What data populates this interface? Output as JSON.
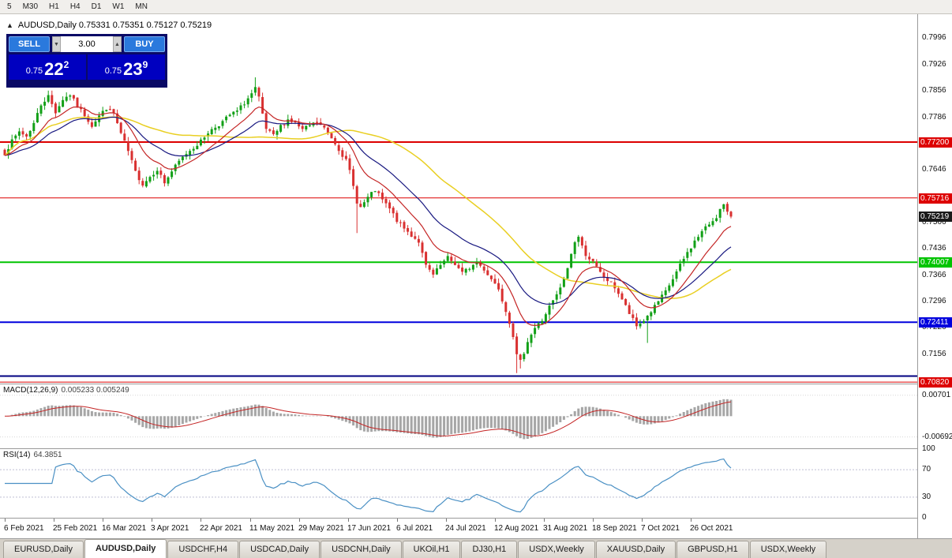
{
  "toolbar": {
    "timeframes": [
      "5",
      "M30",
      "H1",
      "H4",
      "D1",
      "W1",
      "MN"
    ]
  },
  "chart_title": {
    "collapse_icon": "▲",
    "text": "AUDUSD,Daily 0.75331 0.75351 0.75127 0.75219"
  },
  "trade_panel": {
    "sell_label": "SELL",
    "buy_label": "BUY",
    "volume": "3.00",
    "stepper_down": "▼",
    "stepper_up": "▲",
    "sell_price": {
      "prefix": "0.75",
      "big": "22",
      "sup": "2"
    },
    "buy_price": {
      "prefix": "0.75",
      "big": "23",
      "sup": "9"
    }
  },
  "indicator_labels": {
    "macd": "MACD(12,26,9)",
    "macd_values": "0.005233 0.005249",
    "rsi": "RSI(14)",
    "rsi_value": "64.3851"
  },
  "tabs": {
    "active_index": 1,
    "items": [
      "EURUSD,Daily",
      "AUDUSD,Daily",
      "USDCHF,H4",
      "USDCAD,Daily",
      "USDCNH,Daily",
      "UKOil,H1",
      "DJ30,H1",
      "USDX,Weekly",
      "XAUUSD,Daily",
      "GBPUSD,H1",
      "USDX,Weekly"
    ]
  },
  "chart_data": {
    "type": "candlestick",
    "symbol": "AUDUSD",
    "timeframe": "Daily",
    "title": "AUDUSD,Daily",
    "ohlc_current": {
      "open": 0.75331,
      "high": 0.75351,
      "low": 0.75127,
      "close": 0.75219
    },
    "ylim": [
      0.7078,
      0.8062
    ],
    "price_axis_ticks": [
      0.7996,
      0.7926,
      0.7856,
      0.7786,
      0.7646,
      0.7506,
      0.7436,
      0.7366,
      0.7296,
      0.7226,
      0.7156
    ],
    "x_axis_dates": [
      {
        "label": "6 Feb 2021",
        "bar": 0
      },
      {
        "label": "25 Feb 2021",
        "bar": 13.5
      },
      {
        "label": "16 Mar 2021",
        "bar": 27
      },
      {
        "label": "3 Apr 2021",
        "bar": 40.5
      },
      {
        "label": "22 Apr 2021",
        "bar": 54
      },
      {
        "label": "11 May 2021",
        "bar": 67.5
      },
      {
        "label": "29 May 2021",
        "bar": 81
      },
      {
        "label": "17 Jun 2021",
        "bar": 94.5
      },
      {
        "label": "6 Jul 2021",
        "bar": 108
      },
      {
        "label": "24 Jul 2021",
        "bar": 121.5
      },
      {
        "label": "12 Aug 2021",
        "bar": 135
      },
      {
        "label": "31 Aug 2021",
        "bar": 148.5
      },
      {
        "label": "18 Sep 2021",
        "bar": 162
      },
      {
        "label": "7 Oct 2021",
        "bar": 175.5
      },
      {
        "label": "26 Oct 2021",
        "bar": 189
      }
    ],
    "bars": 201,
    "bar_start_x": 6,
    "bar_step": 4.6,
    "seed": 7,
    "noise": 0.0011,
    "wick": 0.0013,
    "last_close": 0.75219,
    "close_anchors": [
      [
        0,
        0.769
      ],
      [
        2,
        0.7722
      ],
      [
        4,
        0.7748
      ],
      [
        6,
        0.7735
      ],
      [
        8,
        0.777
      ],
      [
        10,
        0.782
      ],
      [
        12,
        0.7842
      ],
      [
        14,
        0.78
      ],
      [
        16,
        0.7834
      ],
      [
        18,
        0.7846
      ],
      [
        20,
        0.7815
      ],
      [
        22,
        0.7792
      ],
      [
        24,
        0.7764
      ],
      [
        26,
        0.779
      ],
      [
        28,
        0.781
      ],
      [
        30,
        0.7796
      ],
      [
        32,
        0.7742
      ],
      [
        34,
        0.7695
      ],
      [
        36,
        0.764
      ],
      [
        38,
        0.7608
      ],
      [
        40,
        0.7628
      ],
      [
        42,
        0.7648
      ],
      [
        44,
        0.7612
      ],
      [
        46,
        0.7642
      ],
      [
        48,
        0.7668
      ],
      [
        50,
        0.769
      ],
      [
        52,
        0.7706
      ],
      [
        54,
        0.7722
      ],
      [
        56,
        0.7746
      ],
      [
        58,
        0.776
      ],
      [
        60,
        0.7774
      ],
      [
        62,
        0.7792
      ],
      [
        64,
        0.7802
      ],
      [
        66,
        0.7824
      ],
      [
        68,
        0.7848
      ],
      [
        69,
        0.7862
      ],
      [
        70,
        0.7836
      ],
      [
        71,
        0.7792
      ],
      [
        72,
        0.7754
      ],
      [
        74,
        0.7736
      ],
      [
        76,
        0.7762
      ],
      [
        78,
        0.778
      ],
      [
        80,
        0.777
      ],
      [
        82,
        0.7752
      ],
      [
        84,
        0.7764
      ],
      [
        86,
        0.7772
      ],
      [
        88,
        0.7756
      ],
      [
        90,
        0.7732
      ],
      [
        92,
        0.7702
      ],
      [
        94,
        0.767
      ],
      [
        95,
        0.7642
      ],
      [
        96,
        0.7602
      ],
      [
        97,
        0.7562
      ],
      [
        98,
        0.7546
      ],
      [
        100,
        0.7572
      ],
      [
        102,
        0.7592
      ],
      [
        104,
        0.7566
      ],
      [
        106,
        0.7542
      ],
      [
        108,
        0.7512
      ],
      [
        110,
        0.749
      ],
      [
        112,
        0.7472
      ],
      [
        114,
        0.7456
      ],
      [
        115,
        0.7422
      ],
      [
        116,
        0.739
      ],
      [
        118,
        0.7366
      ],
      [
        120,
        0.7392
      ],
      [
        122,
        0.7412
      ],
      [
        124,
        0.7396
      ],
      [
        126,
        0.7372
      ],
      [
        128,
        0.7386
      ],
      [
        130,
        0.74
      ],
      [
        132,
        0.7382
      ],
      [
        134,
        0.7356
      ],
      [
        136,
        0.7332
      ],
      [
        137,
        0.7302
      ],
      [
        138,
        0.7272
      ],
      [
        139,
        0.7242
      ],
      [
        140,
        0.7206
      ],
      [
        141,
        0.7152
      ],
      [
        142,
        0.7136
      ],
      [
        143,
        0.7162
      ],
      [
        144,
        0.7192
      ],
      [
        146,
        0.7226
      ],
      [
        148,
        0.7246
      ],
      [
        150,
        0.7282
      ],
      [
        152,
        0.7312
      ],
      [
        154,
        0.7354
      ],
      [
        155,
        0.7386
      ],
      [
        156,
        0.7422
      ],
      [
        157,
        0.7456
      ],
      [
        158,
        0.7468
      ],
      [
        159,
        0.7442
      ],
      [
        160,
        0.7422
      ],
      [
        162,
        0.74
      ],
      [
        164,
        0.7372
      ],
      [
        166,
        0.7352
      ],
      [
        168,
        0.7334
      ],
      [
        170,
        0.7302
      ],
      [
        172,
        0.7264
      ],
      [
        174,
        0.723
      ],
      [
        176,
        0.7246
      ],
      [
        178,
        0.727
      ],
      [
        180,
        0.7296
      ],
      [
        182,
        0.7322
      ],
      [
        184,
        0.7356
      ],
      [
        186,
        0.7392
      ],
      [
        188,
        0.7426
      ],
      [
        190,
        0.7456
      ],
      [
        192,
        0.7482
      ],
      [
        194,
        0.7502
      ],
      [
        196,
        0.7522
      ],
      [
        197,
        0.754
      ],
      [
        198,
        0.7552
      ],
      [
        199,
        0.753
      ],
      [
        200,
        0.75219
      ]
    ],
    "wick_overrides": {
      "69": {
        "high": 0.7892
      },
      "97": {
        "low": 0.7478
      },
      "141": {
        "low": 0.7106
      },
      "142": {
        "low": 0.7118
      },
      "177": {
        "low": 0.7186
      },
      "198": {
        "high": 0.7556
      }
    },
    "colors": {
      "bull": "#12a017",
      "bear": "#d93030"
    },
    "moving_averages": [
      {
        "type": "sma",
        "period": 50,
        "color": "#e9cf22",
        "width": 1.5
      },
      {
        "type": "ema",
        "period": 26,
        "color": "#181880",
        "width": 1.2
      },
      {
        "type": "ema",
        "period": 12,
        "color": "#c42525",
        "width": 1.2
      }
    ],
    "hlines": [
      {
        "price": 0.772,
        "label": "0.77200",
        "color": "#dd0000",
        "width": 2
      },
      {
        "price": 0.75716,
        "label": "0.75716",
        "color": "#dd0000",
        "width": 1
      },
      {
        "price": 0.74007,
        "label": "0.74007",
        "color": "#00c400",
        "width": 2
      },
      {
        "price": 0.72411,
        "label": "0.72411",
        "color": "#0000dd",
        "width": 2
      },
      {
        "price": 0.7098,
        "label": null,
        "color": "#000080",
        "width": 2
      },
      {
        "price": 0.7082,
        "label": "0.70820",
        "color": "#dd0000",
        "width": 1
      }
    ],
    "current_price": {
      "value": 0.75219,
      "label": "0.75219",
      "bg": "#1a1a1a"
    },
    "macd": {
      "fast": 12,
      "slow": 26,
      "signal": 9,
      "current_values": [
        0.005233,
        0.005249
      ],
      "ylim": [
        -0.0107,
        0.0106
      ],
      "ticks": [
        {
          "value": 0.00701,
          "label": "0.00701"
        },
        {
          "value": -0.00692,
          "label": "-0.00692"
        }
      ],
      "histogram_color": "#a6a6a6",
      "signal_color": "#c42525"
    },
    "rsi": {
      "period": 14,
      "current_value": 64.3851,
      "ylim": [
        0,
        100
      ],
      "ticks": [
        100,
        70,
        30,
        0
      ],
      "levels": [
        70,
        30
      ],
      "color": "#4a90c4"
    }
  }
}
